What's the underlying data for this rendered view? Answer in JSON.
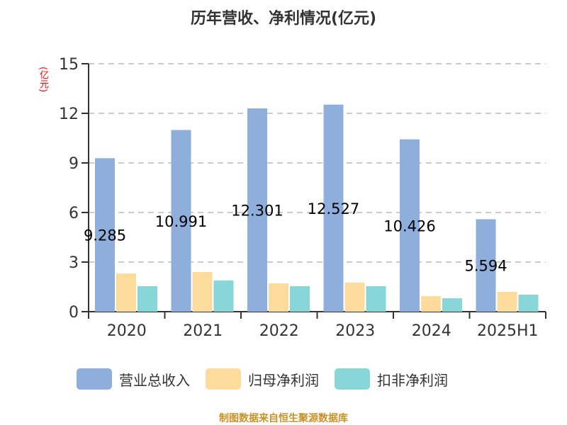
{
  "title": "历年营收、净利情况(亿元)",
  "y_unit": "(亿元)",
  "legend": [
    {
      "label": "营业总收入",
      "color": "#8eaedb"
    },
    {
      "label": "归母净利润",
      "color": "#fddb9c"
    },
    {
      "label": "扣非净利润",
      "color": "#88d6d8"
    }
  ],
  "source": "制图数据来自恒生聚源数据库",
  "chart_data": {
    "type": "bar",
    "title": "历年营收、净利情况(亿元)",
    "xlabel": "",
    "ylabel": "(亿元)",
    "ylim": [
      0,
      15
    ],
    "yticks": [
      0,
      3,
      6,
      9,
      12,
      15
    ],
    "grid": true,
    "legend_position": "bottom",
    "categories": [
      "2020",
      "2021",
      "2022",
      "2023",
      "2024",
      "2025H1"
    ],
    "series": [
      {
        "name": "营业总收入",
        "color": "#8eaedb",
        "values": [
          9.285,
          10.991,
          12.301,
          12.527,
          10.426,
          5.594
        ],
        "labels": [
          "9.285",
          "10.991",
          "12.301",
          "12.527",
          "10.426",
          "5.594"
        ]
      },
      {
        "name": "归母净利润",
        "color": "#fddb9c",
        "values": [
          2.31,
          2.4,
          1.71,
          1.76,
          0.94,
          1.2
        ]
      },
      {
        "name": "扣非净利润",
        "color": "#88d6d8",
        "values": [
          1.54,
          1.89,
          1.54,
          1.54,
          0.81,
          1.03
        ]
      }
    ]
  }
}
